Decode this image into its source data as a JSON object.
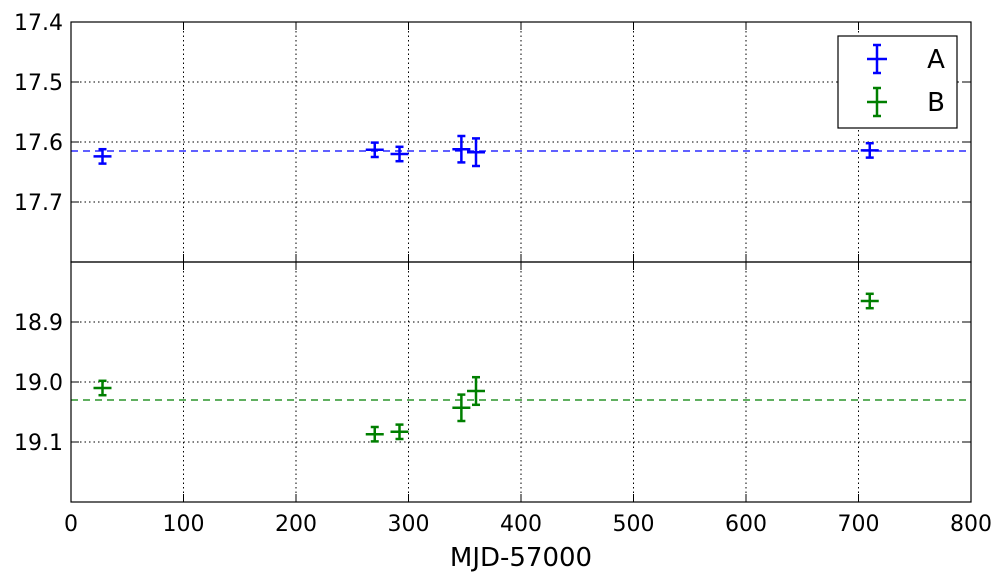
{
  "chart_data": {
    "type": "scatter",
    "xlabel": "MJD-57000",
    "xlim": [
      0,
      800
    ],
    "x_ticks": [
      0,
      100,
      200,
      300,
      400,
      500,
      600,
      700,
      800
    ],
    "x_tick_labels": [
      "0",
      "100",
      "200",
      "300",
      "400",
      "500",
      "600",
      "700",
      "800"
    ],
    "grid": true,
    "legend": {
      "placement": "top-right",
      "entries": [
        "A",
        "B"
      ]
    },
    "panels": [
      {
        "name": "A",
        "color": "#0000ff",
        "ylim": [
          17.4,
          17.8
        ],
        "y_inverted": true,
        "y_ticks": [
          17.4,
          17.5,
          17.6,
          17.7
        ],
        "y_tick_labels": [
          "17.4",
          "17.5",
          "17.6",
          "17.7"
        ],
        "mean_line": 17.615,
        "points": [
          {
            "x": 28,
            "y": 17.624,
            "xerr": 8,
            "yerr": 0.012
          },
          {
            "x": 270,
            "y": 17.613,
            "xerr": 8,
            "yerr": 0.012
          },
          {
            "x": 292,
            "y": 17.62,
            "xerr": 8,
            "yerr": 0.012
          },
          {
            "x": 347,
            "y": 17.612,
            "xerr": 8,
            "yerr": 0.022
          },
          {
            "x": 360,
            "y": 17.617,
            "xerr": 8,
            "yerr": 0.023
          },
          {
            "x": 710,
            "y": 17.614,
            "xerr": 8,
            "yerr": 0.012
          }
        ]
      },
      {
        "name": "B",
        "color": "#007f00",
        "ylim": [
          18.8,
          19.2
        ],
        "y_inverted": true,
        "y_ticks": [
          18.9,
          19.0,
          19.1
        ],
        "y_tick_labels": [
          "18.9",
          "19.0",
          "19.1"
        ],
        "mean_line": 19.03,
        "points": [
          {
            "x": 28,
            "y": 19.01,
            "xerr": 8,
            "yerr": 0.012
          },
          {
            "x": 270,
            "y": 19.087,
            "xerr": 8,
            "yerr": 0.012
          },
          {
            "x": 292,
            "y": 19.083,
            "xerr": 8,
            "yerr": 0.012
          },
          {
            "x": 347,
            "y": 19.043,
            "xerr": 8,
            "yerr": 0.022
          },
          {
            "x": 360,
            "y": 19.015,
            "xerr": 8,
            "yerr": 0.023
          },
          {
            "x": 710,
            "y": 18.865,
            "xerr": 8,
            "yerr": 0.012
          }
        ]
      }
    ]
  }
}
